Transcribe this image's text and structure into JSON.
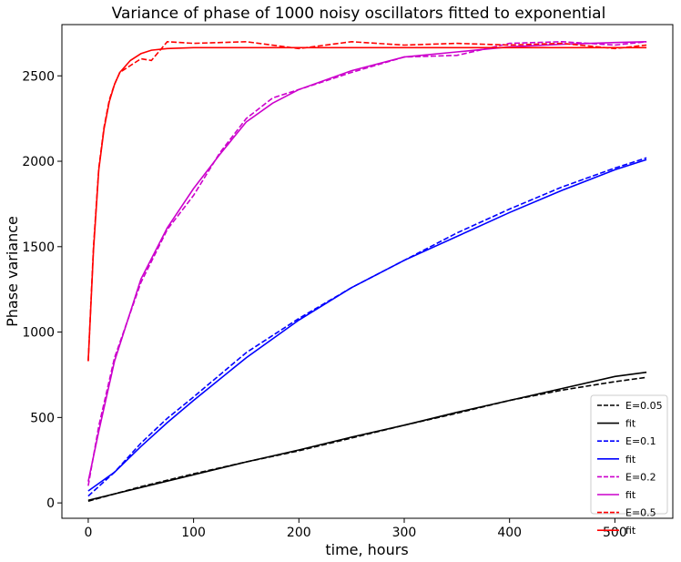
{
  "chart_data": {
    "type": "line",
    "title": "Variance of phase of 1000 noisy oscillators fitted to exponential",
    "xlabel": "time, hours",
    "ylabel": "Phase variance",
    "xlim": [
      -25,
      555
    ],
    "ylim": [
      -90,
      2800
    ],
    "xticks": [
      0,
      100,
      200,
      300,
      400,
      500
    ],
    "yticks": [
      0,
      500,
      1000,
      1500,
      2000,
      2500
    ],
    "grid": false,
    "legend_position": "lower right",
    "series": [
      {
        "name": "E=0.05",
        "style": "dashed",
        "color": "#000000",
        "x": [
          0,
          50,
          100,
          150,
          200,
          250,
          300,
          350,
          400,
          450,
          500,
          530
        ],
        "y": [
          10,
          95,
          170,
          240,
          305,
          380,
          455,
          525,
          600,
          660,
          710,
          735
        ]
      },
      {
        "name": "fit",
        "style": "solid",
        "color": "#000000",
        "x": [
          0,
          50,
          100,
          150,
          200,
          250,
          300,
          350,
          400,
          450,
          500,
          530
        ],
        "y": [
          15,
          90,
          165,
          240,
          310,
          385,
          455,
          530,
          600,
          670,
          740,
          765
        ]
      },
      {
        "name": "E=0.1",
        "style": "dashed",
        "color": "#0000ff",
        "x": [
          0,
          25,
          50,
          75,
          100,
          150,
          200,
          250,
          300,
          350,
          400,
          450,
          500,
          530
        ],
        "y": [
          40,
          180,
          350,
          495,
          620,
          880,
          1080,
          1260,
          1420,
          1580,
          1720,
          1850,
          1960,
          2020
        ]
      },
      {
        "name": "fit",
        "style": "solid",
        "color": "#0000ff",
        "x": [
          0,
          25,
          50,
          75,
          100,
          150,
          200,
          250,
          300,
          350,
          400,
          450,
          500,
          530
        ],
        "y": [
          70,
          180,
          330,
          470,
          600,
          850,
          1070,
          1260,
          1420,
          1560,
          1700,
          1830,
          1950,
          2010
        ]
      },
      {
        "name": "E=0.2",
        "style": "dashed",
        "color": "#cc00cc",
        "x": [
          0,
          10,
          25,
          50,
          75,
          100,
          125,
          150,
          175,
          200,
          250,
          300,
          350,
          400,
          450,
          500,
          530
        ],
        "y": [
          100,
          450,
          850,
          1290,
          1600,
          1800,
          2050,
          2250,
          2370,
          2420,
          2520,
          2610,
          2620,
          2690,
          2700,
          2680,
          2700
        ]
      },
      {
        "name": "fit",
        "style": "solid",
        "color": "#cc00cc",
        "x": [
          0,
          10,
          25,
          50,
          75,
          100,
          125,
          150,
          175,
          200,
          250,
          300,
          350,
          400,
          450,
          500,
          530
        ],
        "y": [
          125,
          420,
          830,
          1310,
          1610,
          1840,
          2040,
          2230,
          2340,
          2420,
          2530,
          2610,
          2640,
          2670,
          2685,
          2695,
          2700
        ]
      },
      {
        "name": "E=0.5",
        "style": "dashed",
        "color": "#ff0000",
        "x": [
          0,
          5,
          10,
          15,
          20,
          25,
          30,
          40,
          50,
          60,
          75,
          100,
          150,
          200,
          250,
          300,
          350,
          400,
          450,
          500,
          530
        ],
        "y": [
          830,
          1500,
          1960,
          2200,
          2360,
          2450,
          2520,
          2560,
          2600,
          2590,
          2700,
          2690,
          2700,
          2660,
          2700,
          2680,
          2690,
          2680,
          2690,
          2660,
          2680
        ]
      },
      {
        "name": "fit",
        "style": "solid",
        "color": "#ff0000",
        "x": [
          0,
          5,
          10,
          15,
          20,
          25,
          30,
          40,
          50,
          60,
          75,
          100,
          150,
          200,
          250,
          300,
          350,
          400,
          450,
          500,
          530
        ],
        "y": [
          830,
          1480,
          1950,
          2190,
          2350,
          2450,
          2520,
          2590,
          2630,
          2650,
          2660,
          2665,
          2665,
          2665,
          2665,
          2665,
          2665,
          2665,
          2665,
          2665,
          2665
        ]
      }
    ]
  }
}
